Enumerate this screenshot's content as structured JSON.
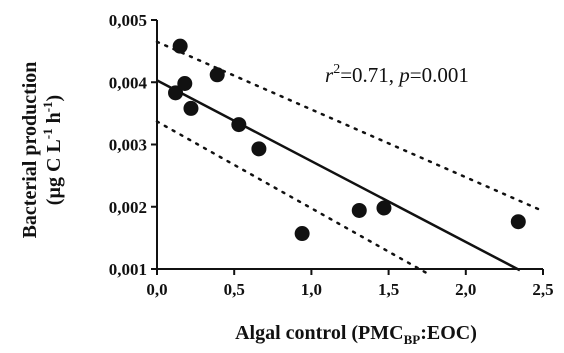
{
  "chart_data": {
    "type": "scatter",
    "xlabel": "Algal control (PMC",
    "xlabel_sub": "BP",
    "xlabel_end": ":EOC)",
    "ylabel_line1": "Bacterial production",
    "ylabel_line2_pre": "(µg C L",
    "ylabel_line2_sup1": "-1",
    "ylabel_line2_mid": " h",
    "ylabel_line2_sup2": "-1",
    "ylabel_line2_end": ")",
    "xlim": [
      0,
      2.5
    ],
    "ylim": [
      0.001,
      0.005
    ],
    "x_ticks": [
      0,
      0.5,
      1,
      1.5,
      2,
      2.5
    ],
    "x_tick_labels": [
      "0,0",
      "0,5",
      "1,0",
      "1,5",
      "2,0",
      "2,5"
    ],
    "y_ticks": [
      0.001,
      0.002,
      0.003,
      0.004,
      0.005
    ],
    "y_tick_labels": [
      "0,001",
      "0,002",
      "0,003",
      "0,004",
      "0,005"
    ],
    "points": [
      {
        "x": 0.15,
        "y": 0.00458
      },
      {
        "x": 0.12,
        "y": 0.00383
      },
      {
        "x": 0.18,
        "y": 0.00398
      },
      {
        "x": 0.22,
        "y": 0.00358
      },
      {
        "x": 0.39,
        "y": 0.00412
      },
      {
        "x": 0.53,
        "y": 0.00332
      },
      {
        "x": 0.66,
        "y": 0.00293
      },
      {
        "x": 0.94,
        "y": 0.00157
      },
      {
        "x": 1.31,
        "y": 0.00194
      },
      {
        "x": 1.47,
        "y": 0.00198
      },
      {
        "x": 2.34,
        "y": 0.00176
      }
    ],
    "regression_line": [
      [
        0,
        0.00403
      ],
      [
        2.35,
        0.00098
      ]
    ],
    "confidence_upper": [
      [
        0,
        0.00465
      ],
      [
        2.5,
        0.00193
      ]
    ],
    "confidence_lower": [
      [
        0,
        0.00337
      ],
      [
        1.75,
        0.00093
      ]
    ],
    "annotation": {
      "r_symbol": "r",
      "r_sup": "2",
      "stats_text": "=0.71, ",
      "p_symbol": "p",
      "p_value": "=0.001"
    },
    "grid": false,
    "legend": "none"
  }
}
